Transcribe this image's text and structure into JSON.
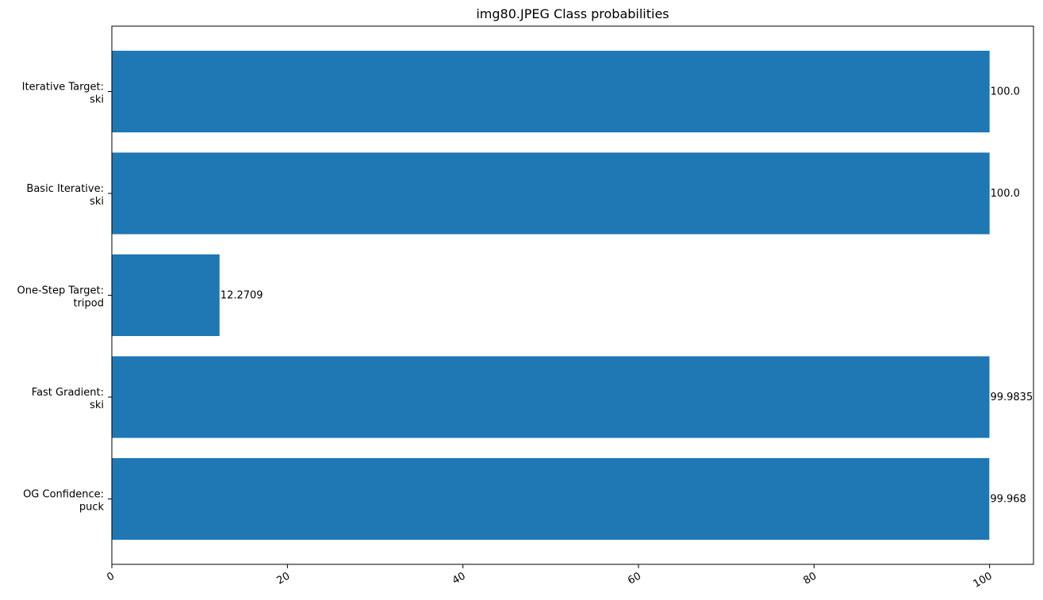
{
  "chart_data": {
    "type": "bar",
    "orientation": "horizontal",
    "title": "img80.JPEG Class probabilities",
    "xlabel": "",
    "ylabel": "",
    "xlim": [
      0,
      105
    ],
    "xticks": [
      "0",
      "20",
      "40",
      "60",
      "80",
      "100"
    ],
    "categories": [
      [
        "OG Confidence:",
        "puck"
      ],
      [
        "Fast Gradient:",
        "ski"
      ],
      [
        "One-Step Target:",
        "tripod"
      ],
      [
        "Basic Iterative:",
        "ski"
      ],
      [
        "Iterative Target:",
        "ski"
      ]
    ],
    "values": [
      99.968,
      99.9835,
      12.2709,
      100.0,
      100.0
    ],
    "value_labels": [
      "99.968",
      "99.9835",
      "12.2709",
      "100.0",
      "100.0"
    ],
    "bar_color": "#1f77b4",
    "grid": false,
    "legend": "none"
  }
}
